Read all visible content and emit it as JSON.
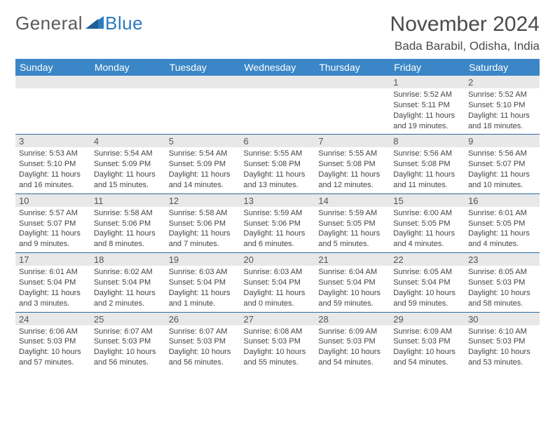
{
  "logo": {
    "text1": "General",
    "text2": "Blue"
  },
  "title": "November 2024",
  "location": "Bada Barabil, Odisha, India",
  "colors": {
    "header_bg": "#3b86c6",
    "header_text": "#ffffff",
    "row_border": "#2b6aa3",
    "daynum_bg": "#e8e8e8",
    "text": "#444444",
    "logo_gray": "#5a5a5a",
    "logo_blue": "#2b7bbf"
  },
  "weekdays": [
    "Sunday",
    "Monday",
    "Tuesday",
    "Wednesday",
    "Thursday",
    "Friday",
    "Saturday"
  ],
  "weeks": [
    [
      null,
      null,
      null,
      null,
      null,
      {
        "d": "1",
        "sr": "5:52 AM",
        "ss": "5:11 PM",
        "dl": "11 hours and 19 minutes."
      },
      {
        "d": "2",
        "sr": "5:52 AM",
        "ss": "5:10 PM",
        "dl": "11 hours and 18 minutes."
      }
    ],
    [
      {
        "d": "3",
        "sr": "5:53 AM",
        "ss": "5:10 PM",
        "dl": "11 hours and 16 minutes."
      },
      {
        "d": "4",
        "sr": "5:54 AM",
        "ss": "5:09 PM",
        "dl": "11 hours and 15 minutes."
      },
      {
        "d": "5",
        "sr": "5:54 AM",
        "ss": "5:09 PM",
        "dl": "11 hours and 14 minutes."
      },
      {
        "d": "6",
        "sr": "5:55 AM",
        "ss": "5:08 PM",
        "dl": "11 hours and 13 minutes."
      },
      {
        "d": "7",
        "sr": "5:55 AM",
        "ss": "5:08 PM",
        "dl": "11 hours and 12 minutes."
      },
      {
        "d": "8",
        "sr": "5:56 AM",
        "ss": "5:08 PM",
        "dl": "11 hours and 11 minutes."
      },
      {
        "d": "9",
        "sr": "5:56 AM",
        "ss": "5:07 PM",
        "dl": "11 hours and 10 minutes."
      }
    ],
    [
      {
        "d": "10",
        "sr": "5:57 AM",
        "ss": "5:07 PM",
        "dl": "11 hours and 9 minutes."
      },
      {
        "d": "11",
        "sr": "5:58 AM",
        "ss": "5:06 PM",
        "dl": "11 hours and 8 minutes."
      },
      {
        "d": "12",
        "sr": "5:58 AM",
        "ss": "5:06 PM",
        "dl": "11 hours and 7 minutes."
      },
      {
        "d": "13",
        "sr": "5:59 AM",
        "ss": "5:06 PM",
        "dl": "11 hours and 6 minutes."
      },
      {
        "d": "14",
        "sr": "5:59 AM",
        "ss": "5:05 PM",
        "dl": "11 hours and 5 minutes."
      },
      {
        "d": "15",
        "sr": "6:00 AM",
        "ss": "5:05 PM",
        "dl": "11 hours and 4 minutes."
      },
      {
        "d": "16",
        "sr": "6:01 AM",
        "ss": "5:05 PM",
        "dl": "11 hours and 4 minutes."
      }
    ],
    [
      {
        "d": "17",
        "sr": "6:01 AM",
        "ss": "5:04 PM",
        "dl": "11 hours and 3 minutes."
      },
      {
        "d": "18",
        "sr": "6:02 AM",
        "ss": "5:04 PM",
        "dl": "11 hours and 2 minutes."
      },
      {
        "d": "19",
        "sr": "6:03 AM",
        "ss": "5:04 PM",
        "dl": "11 hours and 1 minute."
      },
      {
        "d": "20",
        "sr": "6:03 AM",
        "ss": "5:04 PM",
        "dl": "11 hours and 0 minutes."
      },
      {
        "d": "21",
        "sr": "6:04 AM",
        "ss": "5:04 PM",
        "dl": "10 hours and 59 minutes."
      },
      {
        "d": "22",
        "sr": "6:05 AM",
        "ss": "5:04 PM",
        "dl": "10 hours and 59 minutes."
      },
      {
        "d": "23",
        "sr": "6:05 AM",
        "ss": "5:03 PM",
        "dl": "10 hours and 58 minutes."
      }
    ],
    [
      {
        "d": "24",
        "sr": "6:06 AM",
        "ss": "5:03 PM",
        "dl": "10 hours and 57 minutes."
      },
      {
        "d": "25",
        "sr": "6:07 AM",
        "ss": "5:03 PM",
        "dl": "10 hours and 56 minutes."
      },
      {
        "d": "26",
        "sr": "6:07 AM",
        "ss": "5:03 PM",
        "dl": "10 hours and 56 minutes."
      },
      {
        "d": "27",
        "sr": "6:08 AM",
        "ss": "5:03 PM",
        "dl": "10 hours and 55 minutes."
      },
      {
        "d": "28",
        "sr": "6:09 AM",
        "ss": "5:03 PM",
        "dl": "10 hours and 54 minutes."
      },
      {
        "d": "29",
        "sr": "6:09 AM",
        "ss": "5:03 PM",
        "dl": "10 hours and 54 minutes."
      },
      {
        "d": "30",
        "sr": "6:10 AM",
        "ss": "5:03 PM",
        "dl": "10 hours and 53 minutes."
      }
    ]
  ],
  "labels": {
    "sunrise": "Sunrise: ",
    "sunset": "Sunset: ",
    "daylight": "Daylight: "
  }
}
